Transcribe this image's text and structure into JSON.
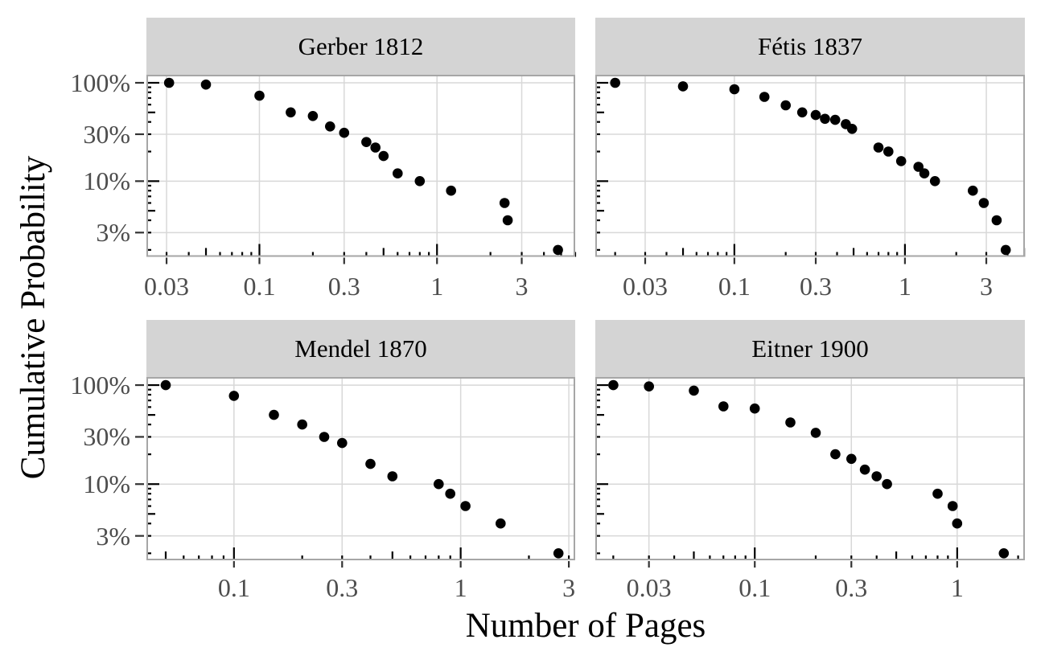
{
  "figure": {
    "background": "#ffffff",
    "strip_bg": "#d4d4d4",
    "grid_color": "#d8d8d8",
    "panel_border_color": "#a6a6a6",
    "axis_tick_color": "#333333",
    "tick_label_color": "#4d4d4d",
    "point_color": "#000000"
  },
  "chart_data": {
    "type": "scatter",
    "title": "",
    "xlabel": "Number of Pages",
    "ylabel": "Cumulative Probability",
    "x_scale": "log10",
    "y_scale": "log10",
    "grid": "major-only",
    "legend_position": "none",
    "layout": "2x2 facets",
    "y_range_pct": [
      1.7,
      120.7
    ],
    "y_ticks": [
      {
        "value": 100,
        "label": "100%"
      },
      {
        "value": 30,
        "label": "30%"
      },
      {
        "value": 10,
        "label": "10%"
      },
      {
        "value": 3,
        "label": "3%"
      }
    ],
    "facets": [
      {
        "title": "Gerber 1812",
        "x_range": [
          0.0231,
          6.0
        ],
        "x_breaks": [
          0.03,
          0.1,
          0.3,
          1,
          3
        ],
        "x_break_labels": [
          "0.03",
          "0.1",
          "0.3",
          "1",
          "3"
        ],
        "points": [
          [
            0.031,
            100
          ],
          [
            0.05,
            96
          ],
          [
            0.1,
            74
          ],
          [
            0.15,
            50
          ],
          [
            0.2,
            46
          ],
          [
            0.25,
            36
          ],
          [
            0.3,
            31
          ],
          [
            0.4,
            25
          ],
          [
            0.45,
            22
          ],
          [
            0.5,
            18
          ],
          [
            0.6,
            12
          ],
          [
            0.8,
            10
          ],
          [
            1.2,
            8
          ],
          [
            2.4,
            6
          ],
          [
            2.5,
            4
          ],
          [
            4.8,
            2
          ]
        ]
      },
      {
        "title": "Fétis 1837",
        "x_range": [
          0.0153,
          5.05
        ],
        "x_breaks": [
          0.03,
          0.1,
          0.3,
          1,
          3
        ],
        "x_break_labels": [
          "0.03",
          "0.1",
          "0.3",
          "1",
          "3"
        ],
        "points": [
          [
            0.02,
            100
          ],
          [
            0.05,
            92
          ],
          [
            0.1,
            86
          ],
          [
            0.15,
            72
          ],
          [
            0.2,
            59
          ],
          [
            0.25,
            50
          ],
          [
            0.3,
            47
          ],
          [
            0.34,
            43
          ],
          [
            0.39,
            42
          ],
          [
            0.45,
            38
          ],
          [
            0.49,
            34
          ],
          [
            0.7,
            22
          ],
          [
            0.8,
            20
          ],
          [
            0.95,
            16
          ],
          [
            1.2,
            14
          ],
          [
            1.3,
            12
          ],
          [
            1.5,
            10
          ],
          [
            2.5,
            8
          ],
          [
            2.9,
            6
          ],
          [
            3.45,
            4
          ],
          [
            3.9,
            2
          ]
        ]
      },
      {
        "title": "Mendel 1870",
        "x_range": [
          0.0411,
          3.2
        ],
        "x_breaks": [
          0.1,
          0.3,
          1,
          3
        ],
        "x_break_labels": [
          "0.1",
          "0.3",
          "1",
          "3"
        ],
        "points": [
          [
            0.05,
            100
          ],
          [
            0.1,
            78
          ],
          [
            0.15,
            50
          ],
          [
            0.2,
            40
          ],
          [
            0.25,
            30
          ],
          [
            0.3,
            26
          ],
          [
            0.4,
            16
          ],
          [
            0.5,
            12
          ],
          [
            0.8,
            10
          ],
          [
            0.9,
            8
          ],
          [
            1.05,
            6
          ],
          [
            1.5,
            4
          ],
          [
            2.7,
            2
          ]
        ]
      },
      {
        "title": "Eitner 1900",
        "x_range": [
          0.0163,
          2.16
        ],
        "x_breaks": [
          0.03,
          0.1,
          0.3,
          1
        ],
        "x_break_labels": [
          "0.03",
          "0.1",
          "0.3",
          "1"
        ],
        "points": [
          [
            0.02,
            100
          ],
          [
            0.03,
            97
          ],
          [
            0.05,
            88
          ],
          [
            0.07,
            61
          ],
          [
            0.1,
            58
          ],
          [
            0.15,
            42
          ],
          [
            0.2,
            33
          ],
          [
            0.25,
            20
          ],
          [
            0.3,
            18
          ],
          [
            0.35,
            14
          ],
          [
            0.4,
            12
          ],
          [
            0.45,
            10
          ],
          [
            0.8,
            8
          ],
          [
            0.95,
            6
          ],
          [
            1.0,
            4
          ],
          [
            1.7,
            2
          ]
        ]
      }
    ]
  }
}
